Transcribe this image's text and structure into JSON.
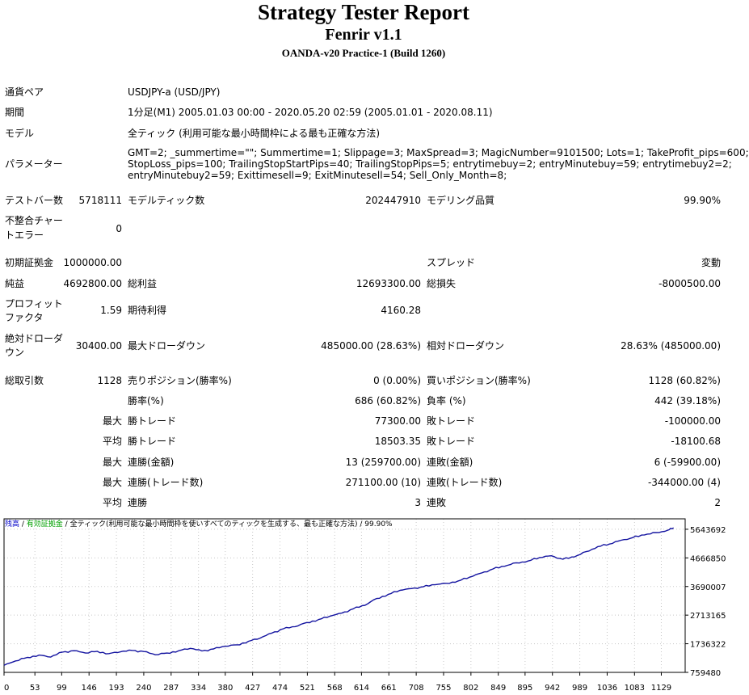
{
  "header": {
    "title": "Strategy Tester Report",
    "ea_name": "Fenrir v1.1",
    "server": "OANDA-v20 Practice-1 (Build 1260)"
  },
  "settings": {
    "symbol_label": "通貨ペア",
    "symbol_value": "USDJPY-a (USD/JPY)",
    "period_label": "期間",
    "period_value": "1分足(M1) 2005.01.03 00:00 - 2020.05.20 02:59 (2005.01.01 - 2020.08.11)",
    "model_label": "モデル",
    "model_value": "全ティック (利用可能な最小時間枠による最も正確な方法)",
    "params_label": "パラメーター",
    "params_lines": [
      "GMT=2; _summertime=\"\"; Summertime=1; Slippage=3; MaxSpread=3; MagicNumber=9101500; Lots=1; TakeProfit_pips=600;",
      "StopLoss_pips=100; TrailingStopStartPips=40; TrailingStopPips=5; entrytimebuy=2; entryMinutebuy=59; entrytimebuy2=2;",
      "entryMinutebuy2=59; Exittimesell=9; ExitMinutesell=54; Sell_Only_Month=8;"
    ]
  },
  "stats": {
    "bars_label": "テストバー数",
    "bars_value": "5718111",
    "ticks_label": "モデルティック数",
    "ticks_value": "202447910",
    "quality_label": "モデリング品質",
    "quality_value": "99.90%",
    "mismatch_label_1": "不整合チャー",
    "mismatch_label_2": "トエラー",
    "mismatch_value": "0",
    "deposit_label": "初期証拠金",
    "deposit_value": "1000000.00",
    "spread_label": "スプレッド",
    "spread_value": "変動",
    "net_label": "純益",
    "net_value": "4692800.00",
    "gross_profit_label": "総利益",
    "gross_profit_value": "12693300.00",
    "gross_loss_label": "総損失",
    "gross_loss_value": "-8000500.00",
    "pf_label_1": "プロフィット",
    "pf_label_2": "ファクタ",
    "pf_value": "1.59",
    "expected_label": "期待利得",
    "expected_value": "4160.28",
    "abs_dd_label_1": "絶対ドローダ",
    "abs_dd_label_2": "ウン",
    "abs_dd_value": "30400.00",
    "max_dd_label": "最大ドローダウン",
    "max_dd_value": "485000.00 (28.63%)",
    "rel_dd_label": "相対ドローダウン",
    "rel_dd_value": "28.63% (485000.00)",
    "total_trades_label": "総取引数",
    "total_trades_value": "1128",
    "short_label": "売りポジション(勝率%)",
    "short_value": "0 (0.00%)",
    "long_label": "買いポジション(勝率%)",
    "long_value": "1128 (60.82%)",
    "win_rate_label": "勝率(%)",
    "win_rate_value": "686 (60.82%)",
    "loss_rate_label": "負率 (%)",
    "loss_rate_value": "442 (39.18%)",
    "max_label_1": "最大",
    "largest_win_label": "勝トレード",
    "largest_win_value": "77300.00",
    "largest_loss_label": "敗トレード",
    "largest_loss_value": "-100000.00",
    "avg_label_1": "平均",
    "avg_win_label": "勝トレード",
    "avg_win_value": "18503.35",
    "avg_loss_label": "敗トレード",
    "avg_loss_value": "-18100.68",
    "max_label_2": "最大",
    "max_cons_wins_label": "連勝(金額)",
    "max_cons_wins_value": "13 (259700.00)",
    "max_cons_losses_label": "連敗(金額)",
    "max_cons_losses_value": "6 (-59900.00)",
    "max_label_3": "最大",
    "max_cons_profit_label": "連勝(トレード数)",
    "max_cons_profit_value": "271100.00 (10)",
    "max_cons_loss_label": "連敗(トレード数)",
    "max_cons_loss_value": "-344000.00 (4)",
    "avg_label_2": "平均",
    "avg_cons_wins_label": "連勝",
    "avg_cons_wins_value": "3",
    "avg_cons_losses_label": "連敗",
    "avg_cons_losses_value": "2"
  },
  "legend": {
    "balance": "残高",
    "sep1": " / ",
    "equity": "有効証拠金",
    "sep2": " / ",
    "model": "全ティック(利用可能な最小時間枠を使いすべてのティックを生成する、最も正確な方法)",
    "sep3": " / ",
    "quality": "99.90%"
  },
  "colors": {
    "balance_line": "#1414a0",
    "grid": "#c8c8c8",
    "frame": "#000000"
  },
  "chart_data": {
    "type": "line",
    "x_ticks": [
      "0",
      "53",
      "99",
      "146",
      "193",
      "240",
      "287",
      "334",
      "380",
      "427",
      "474",
      "521",
      "568",
      "614",
      "661",
      "708",
      "755",
      "802",
      "849",
      "895",
      "942",
      "989",
      "1036",
      "1083",
      "1129"
    ],
    "y_ticks": [
      "5643692",
      "4666850",
      "3690007",
      "2713165",
      "1736322",
      "759480"
    ],
    "ylim": [
      759480,
      6000000
    ],
    "xlim": [
      0,
      1170
    ],
    "grid": true,
    "series": [
      {
        "name": "残高",
        "color": "#1414a0",
        "x": [
          0,
          20,
          40,
          60,
          80,
          100,
          120,
          140,
          160,
          180,
          200,
          220,
          240,
          260,
          280,
          300,
          320,
          340,
          360,
          380,
          400,
          420,
          440,
          460,
          480,
          500,
          520,
          540,
          560,
          580,
          600,
          620,
          640,
          660,
          680,
          700,
          720,
          740,
          760,
          780,
          800,
          820,
          840,
          860,
          880,
          900,
          920,
          940,
          960,
          980,
          1000,
          1020,
          1040,
          1060,
          1080,
          1100,
          1120,
          1140,
          1150
        ],
        "y": [
          1000000,
          1150000,
          1270000,
          1350000,
          1280000,
          1450000,
          1500000,
          1420000,
          1480000,
          1400000,
          1460000,
          1510000,
          1470000,
          1360000,
          1420000,
          1500000,
          1580000,
          1490000,
          1560000,
          1650000,
          1700000,
          1820000,
          1930000,
          2100000,
          2250000,
          2320000,
          2460000,
          2560000,
          2680000,
          2780000,
          2930000,
          3050000,
          3280000,
          3420000,
          3560000,
          3620000,
          3680000,
          3750000,
          3800000,
          3880000,
          4010000,
          4150000,
          4290000,
          4380000,
          4500000,
          4560000,
          4680000,
          4740000,
          4620000,
          4700000,
          4880000,
          5050000,
          5140000,
          5270000,
          5360000,
          5450000,
          5530000,
          5610000,
          5692800
        ]
      }
    ]
  }
}
